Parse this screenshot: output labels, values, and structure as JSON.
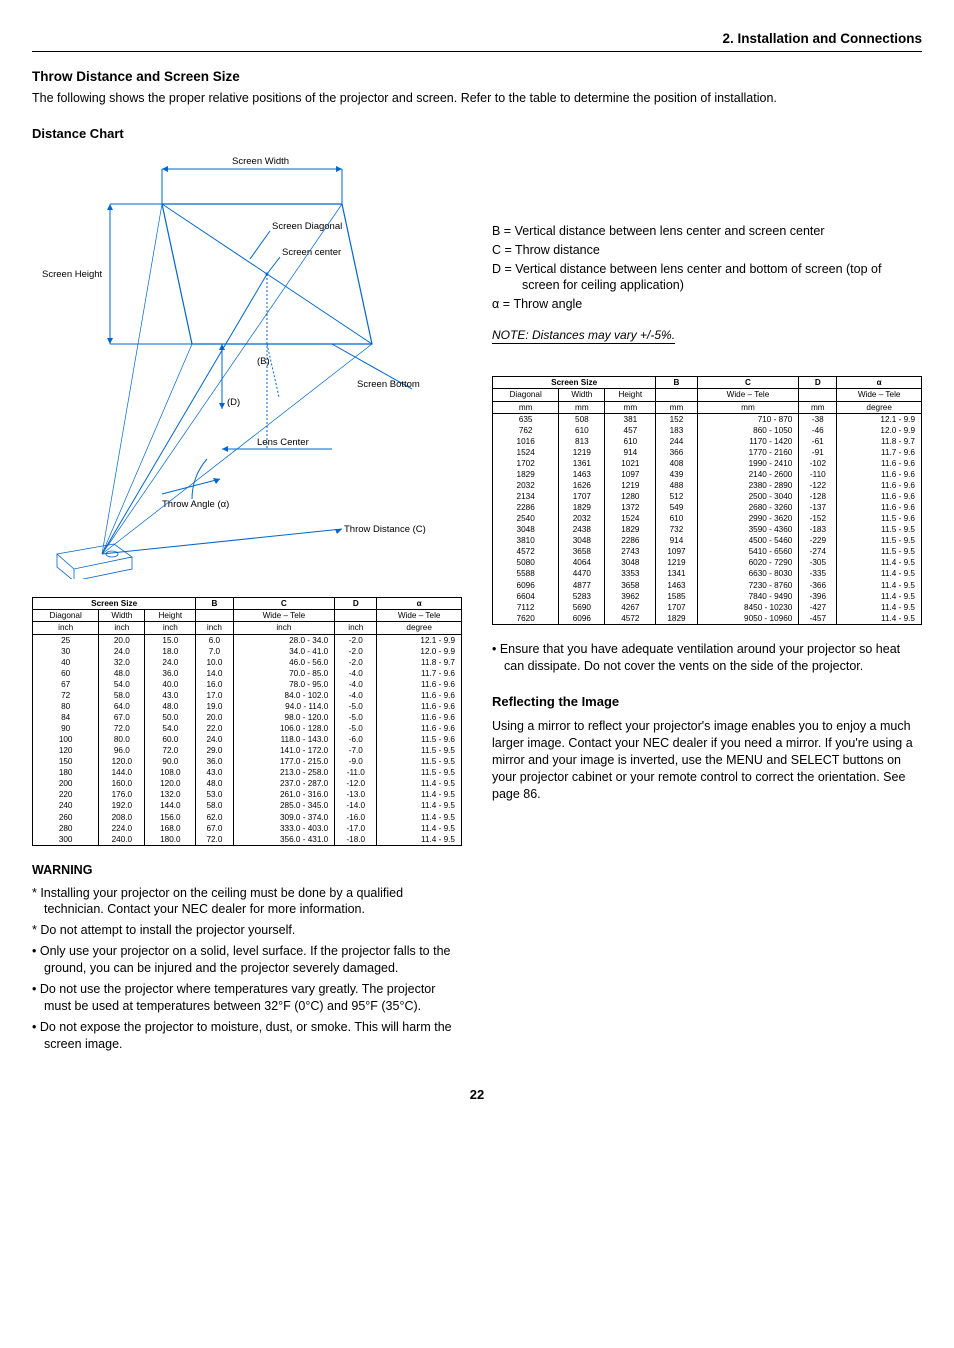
{
  "header": {
    "section_title": "2. Installation and Connections"
  },
  "throw": {
    "title": "Throw Distance and Screen Size",
    "intro": "The following shows the proper relative positions of the projector and screen. Refer to the table to determine the position of installation.",
    "chart_title": "Distance Chart"
  },
  "svg_labels": {
    "screen_width": "Screen Width",
    "screen_diagonal": "Screen Diagonal",
    "screen_center": "Screen center",
    "screen_height": "Screen Height",
    "b": "(B)",
    "d": "(D)",
    "screen_bottom": "Screen Bottom",
    "lens_center": "Lens Center",
    "throw_angle": "Throw Angle (α)",
    "throw_distance": "Throw Distance (C)"
  },
  "callouts": {
    "b": "B =  Vertical distance between lens center and screen center",
    "c": "C =  Throw distance",
    "d": "D =  Vertical distance between lens center and bottom of screen (top of screen for ceiling application)",
    "alpha": "α =   Throw angle"
  },
  "note": "NOTE: Distances may vary +/-5%.",
  "table_headers": {
    "screen_size": "Screen Size",
    "diagonal": "Diagonal",
    "width": "Width",
    "height": "Height",
    "b": "B",
    "c": "C",
    "d": "D",
    "alpha": "α",
    "wide_tele": "Wide – Tele",
    "inch": "inch",
    "mm": "mm",
    "degree": "degree"
  },
  "table_inch": [
    [
      "25",
      "20.0",
      "15.0",
      "6.0",
      "28.0 -   34.0",
      "-2.0",
      "12.1  -  9.9"
    ],
    [
      "30",
      "24.0",
      "18.0",
      "7.0",
      "34.0 -   41.0",
      "-2.0",
      "12.0  -  9.9"
    ],
    [
      "40",
      "32.0",
      "24.0",
      "10.0",
      "46.0 -   56.0",
      "-2.0",
      "11.8  -  9.7"
    ],
    [
      "60",
      "48.0",
      "36.0",
      "14.0",
      "70.0 -   85.0",
      "-4.0",
      "11.7  -  9.6"
    ],
    [
      "67",
      "54.0",
      "40.0",
      "16.0",
      "78.0 -   95.0",
      "-4.0",
      "11.6  -  9.6"
    ],
    [
      "72",
      "58.0",
      "43.0",
      "17.0",
      "84.0 -  102.0",
      "-4.0",
      "11.6  -  9.6"
    ],
    [
      "80",
      "64.0",
      "48.0",
      "19.0",
      "94.0 -  114.0",
      "-5.0",
      "11.6  -  9.6"
    ],
    [
      "84",
      "67.0",
      "50.0",
      "20.0",
      "98.0 -  120.0",
      "-5.0",
      "11.6  -  9.6"
    ],
    [
      "90",
      "72.0",
      "54.0",
      "22.0",
      "106.0 -  128.0",
      "-5.0",
      "11.6  -  9.6"
    ],
    [
      "100",
      "80.0",
      "60.0",
      "24.0",
      "118.0 -  143.0",
      "-6.0",
      "11.5  -  9.6"
    ],
    [
      "120",
      "96.0",
      "72.0",
      "29.0",
      "141.0 -  172.0",
      "-7.0",
      "11.5  -  9.5"
    ],
    [
      "150",
      "120.0",
      "90.0",
      "36.0",
      "177.0 -  215.0",
      "-9.0",
      "11.5  -  9.5"
    ],
    [
      "180",
      "144.0",
      "108.0",
      "43.0",
      "213.0 -  258.0",
      "-11.0",
      "11.5  -  9.5"
    ],
    [
      "200",
      "160.0",
      "120.0",
      "48.0",
      "237.0 -  287.0",
      "-12.0",
      "11.4  -  9.5"
    ],
    [
      "220",
      "176.0",
      "132.0",
      "53.0",
      "261.0 -  316.0",
      "-13.0",
      "11.4  -  9.5"
    ],
    [
      "240",
      "192.0",
      "144.0",
      "58.0",
      "285.0 -  345.0",
      "-14.0",
      "11.4  -  9.5"
    ],
    [
      "260",
      "208.0",
      "156.0",
      "62.0",
      "309.0 -  374.0",
      "-16.0",
      "11.4  -  9.5"
    ],
    [
      "280",
      "224.0",
      "168.0",
      "67.0",
      "333.0 -  403.0",
      "-17.0",
      "11.4  -  9.5"
    ],
    [
      "300",
      "240.0",
      "180.0",
      "72.0",
      "356.0 -  431.0",
      "-18.0",
      "11.4  -  9.5"
    ]
  ],
  "table_mm": [
    [
      "635",
      "508",
      "381",
      "152",
      "710  -     870",
      "-38",
      "12.1  -  9.9"
    ],
    [
      "762",
      "610",
      "457",
      "183",
      "860  -   1050",
      "-46",
      "12.0  -  9.9"
    ],
    [
      "1016",
      "813",
      "610",
      "244",
      "1170  -   1420",
      "-61",
      "11.8  -  9.7"
    ],
    [
      "1524",
      "1219",
      "914",
      "366",
      "1770  -   2160",
      "-91",
      "11.7  -  9.6"
    ],
    [
      "1702",
      "1361",
      "1021",
      "408",
      "1990  -   2410",
      "-102",
      "11.6  -  9.6"
    ],
    [
      "1829",
      "1463",
      "1097",
      "439",
      "2140  -   2600",
      "-110",
      "11.6  -  9.6"
    ],
    [
      "2032",
      "1626",
      "1219",
      "488",
      "2380  -   2890",
      "-122",
      "11.6  -  9.6"
    ],
    [
      "2134",
      "1707",
      "1280",
      "512",
      "2500  -   3040",
      "-128",
      "11.6  -  9.6"
    ],
    [
      "2286",
      "1829",
      "1372",
      "549",
      "2680  -   3260",
      "-137",
      "11.6  -  9.6"
    ],
    [
      "2540",
      "2032",
      "1524",
      "610",
      "2990  -   3620",
      "-152",
      "11.5  -  9.6"
    ],
    [
      "3048",
      "2438",
      "1829",
      "732",
      "3590  -   4360",
      "-183",
      "11.5  -  9.5"
    ],
    [
      "3810",
      "3048",
      "2286",
      "914",
      "4500  -   5460",
      "-229",
      "11.5  -  9.5"
    ],
    [
      "4572",
      "3658",
      "2743",
      "1097",
      "5410  -   6560",
      "-274",
      "11.5  -  9.5"
    ],
    [
      "5080",
      "4064",
      "3048",
      "1219",
      "6020  -   7290",
      "-305",
      "11.4  -  9.5"
    ],
    [
      "5588",
      "4470",
      "3353",
      "1341",
      "6630  -   8030",
      "-335",
      "11.4  -  9.5"
    ],
    [
      "6096",
      "4877",
      "3658",
      "1463",
      "7230  -   8760",
      "-366",
      "11.4  -  9.5"
    ],
    [
      "6604",
      "5283",
      "3962",
      "1585",
      "7840  -   9490",
      "-396",
      "11.4  -  9.5"
    ],
    [
      "7112",
      "5690",
      "4267",
      "1707",
      "8450  - 10230",
      "-427",
      "11.4  -  9.5"
    ],
    [
      "7620",
      "6096",
      "4572",
      "1829",
      "9050  - 10960",
      "-457",
      "11.4  -  9.5"
    ]
  ],
  "warning": {
    "title": "WARNING",
    "items": [
      "*  Installing your projector on the ceiling must be done by a qualified technician. Contact your NEC dealer for more information.",
      "*  Do not attempt to install the projector yourself.",
      "•  Only use your projector on a solid, level surface. If the projector falls to the ground, you can be injured and the projector severely damaged.",
      "•  Do not use the projector where temperatures vary greatly. The projector must be used at temperatures between 32°F (0°C) and 95°F (35°C).",
      "•  Do not expose the projector to moisture, dust, or smoke. This will harm the screen image."
    ]
  },
  "right_text": {
    "vent": "•  Ensure that you have adequate ventilation around your projector so heat can dissipate. Do not cover the vents on the side of the projector.",
    "refl_title": "Reflecting the Image",
    "refl_body": "Using a mirror to reflect your projector's image enables you to enjoy a much larger image. Contact your NEC dealer if you need a mirror. If you're using a mirror and your image is inverted, use the MENU and SELECT buttons on your projector cabinet or your remote control to correct the orientation. See page 86."
  },
  "page_number": "22"
}
